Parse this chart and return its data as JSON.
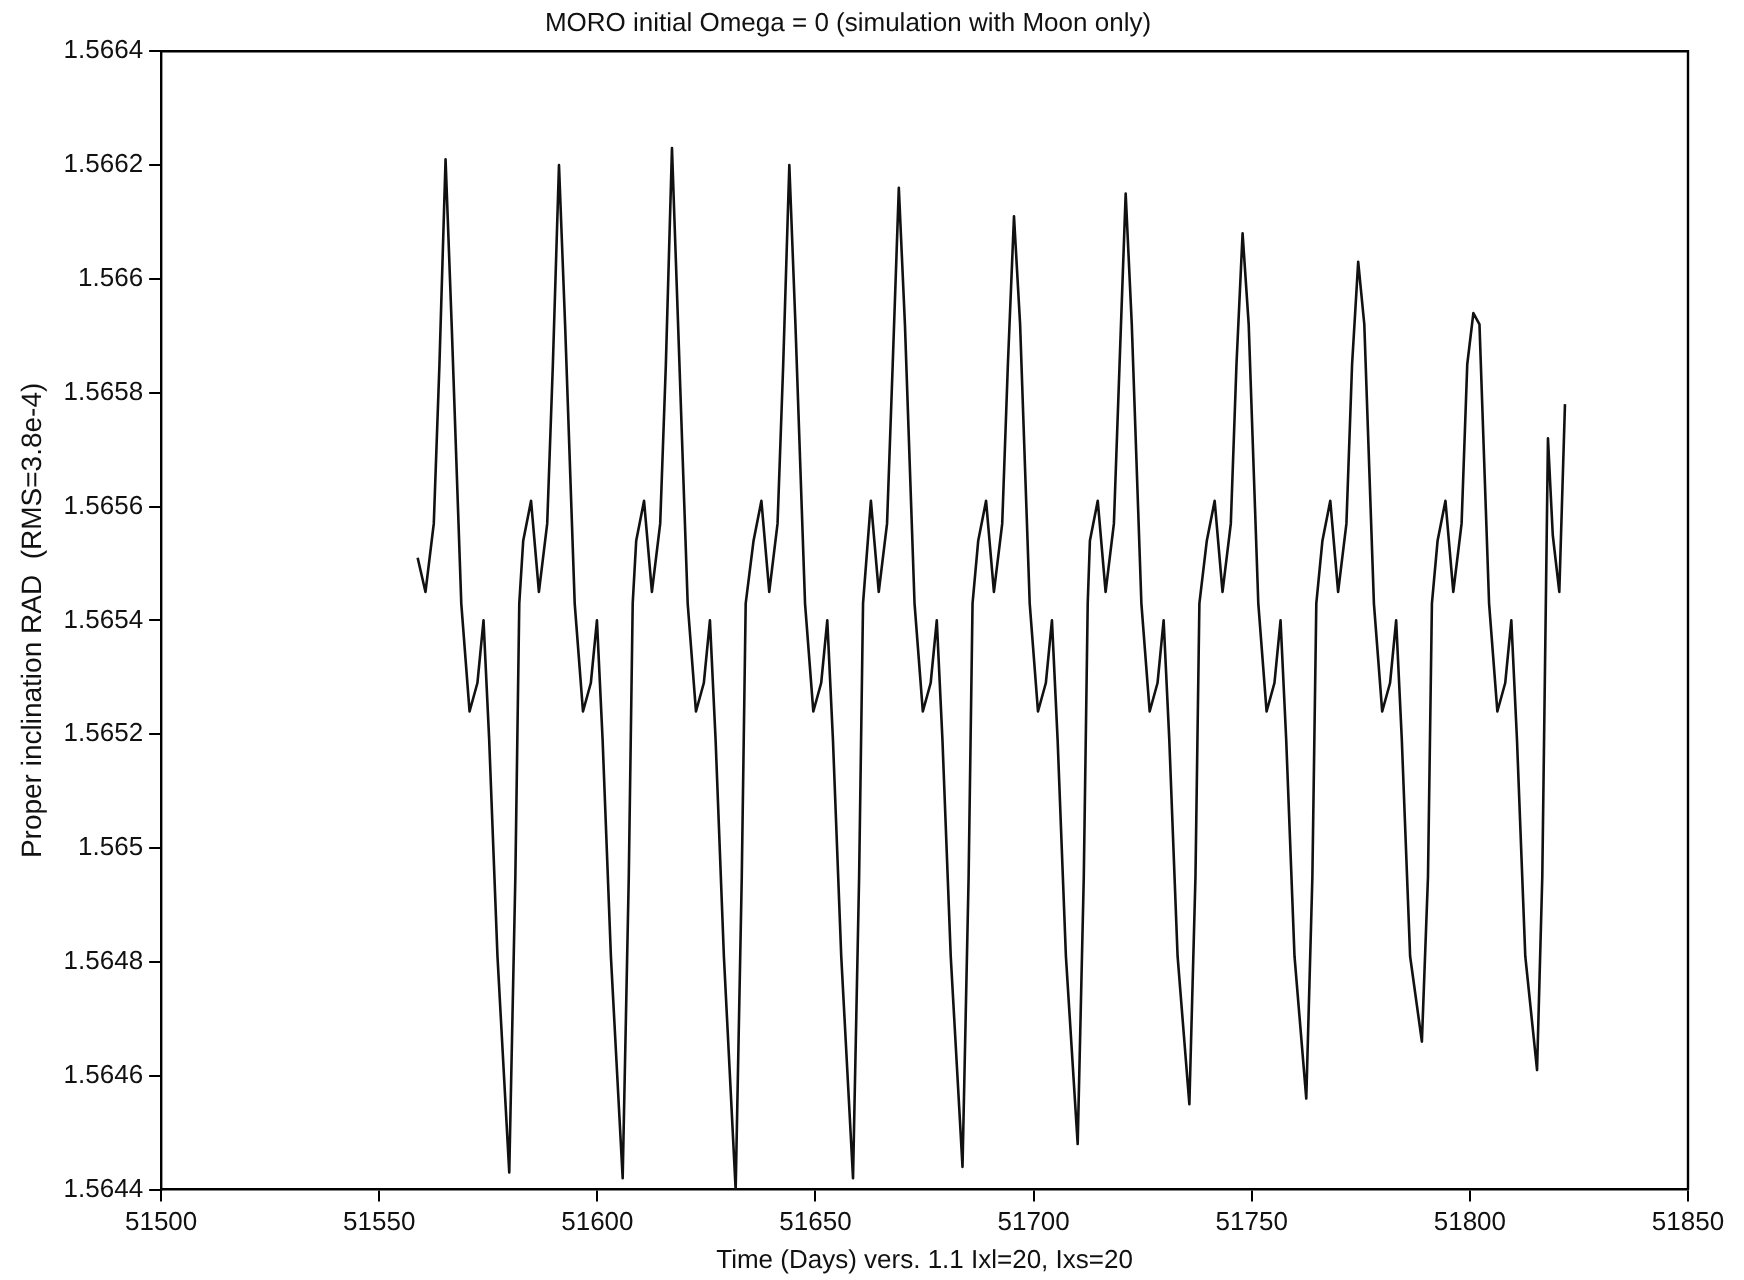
{
  "chart_data": {
    "type": "line",
    "title": "MORO initial Omega = 0 (simulation with Moon only)",
    "xlabel": "Time (Days) vers. 1.1 Ixl=20, Ixs=20",
    "ylabel": "Proper inclination RAD  (RMS=3.8e-4)",
    "xlim": [
      51500,
      51850
    ],
    "xticks": [
      51500,
      51550,
      51600,
      51650,
      51700,
      51750,
      51800,
      51850
    ],
    "ylim": [
      1.5644,
      1.5664
    ],
    "yticks": [
      1.5644,
      1.5646,
      1.5648,
      1.565,
      1.5652,
      1.5654,
      1.5656,
      1.5658,
      1.566,
      1.5662,
      1.5664
    ],
    "grid": false,
    "legend": false,
    "marker": "none",
    "line_style": "solid",
    "series": [
      {
        "color": "#111111",
        "x": [
          51558.8,
          51560.6,
          51562.5,
          51563.8,
          51565.2,
          51566.6,
          51568.8,
          51570.7,
          51572.5,
          51573.9,
          51575.2,
          51577.1,
          51579.8,
          51581.2,
          51582.1,
          51583.0,
          51584.8,
          51586.6,
          51588.5,
          51589.8,
          51591.2,
          51592.6,
          51594.8,
          51596.7,
          51598.5,
          51599.9,
          51601.2,
          51603.1,
          51605.8,
          51607.2,
          51608.1,
          51608.9,
          51610.7,
          51612.5,
          51614.4,
          51615.7,
          51617.1,
          51618.5,
          51620.7,
          51622.6,
          51624.4,
          51625.8,
          51627.1,
          51629.0,
          51631.7,
          51633.1,
          51634.0,
          51635.8,
          51637.6,
          51639.4,
          51641.3,
          51642.6,
          51644.0,
          51645.4,
          51647.6,
          51649.5,
          51651.3,
          51652.7,
          51654.0,
          51655.9,
          51658.6,
          51660.0,
          51660.9,
          51662.7,
          51664.5,
          51666.4,
          51667.7,
          51669.1,
          51670.5,
          51672.7,
          51674.6,
          51676.4,
          51677.8,
          51679.1,
          51681.0,
          51683.7,
          51685.1,
          51686.0,
          51687.3,
          51689.1,
          51690.9,
          51692.8,
          51694.1,
          51695.5,
          51696.9,
          51699.1,
          51701.0,
          51702.8,
          51704.2,
          51705.5,
          51707.4,
          51710.1,
          51711.5,
          51712.4,
          51712.9,
          51714.7,
          51716.5,
          51718.4,
          51719.7,
          51721.1,
          51722.5,
          51724.7,
          51726.6,
          51728.4,
          51729.8,
          51731.1,
          51733.0,
          51735.7,
          51737.1,
          51738.0,
          51739.7,
          51741.5,
          51743.3,
          51745.2,
          51746.5,
          51747.9,
          51749.3,
          51751.5,
          51753.4,
          51755.2,
          51756.6,
          51757.9,
          51759.8,
          51762.5,
          51763.9,
          51764.8,
          51766.2,
          51768.0,
          51769.8,
          51771.7,
          51773.0,
          51774.4,
          51775.8,
          51778.0,
          51779.9,
          51781.7,
          51783.1,
          51784.4,
          51786.3,
          51789.0,
          51790.4,
          51791.3,
          51792.6,
          51794.4,
          51796.2,
          51798.1,
          51799.4,
          51800.8,
          51802.2,
          51804.4,
          51806.3,
          51808.1,
          51809.5,
          51810.8,
          51812.7,
          51815.4,
          51816.6,
          51817.9,
          51819.0,
          51820.5,
          51821.8
        ],
        "values": [
          1.56551,
          1.56545,
          1.56557,
          1.56585,
          1.56621,
          1.56592,
          1.56543,
          1.56524,
          1.56529,
          1.5654,
          1.56519,
          1.56481,
          1.56443,
          1.56495,
          1.56543,
          1.56554,
          1.56561,
          1.56545,
          1.56557,
          1.56585,
          1.5662,
          1.56592,
          1.56543,
          1.56524,
          1.56529,
          1.5654,
          1.56519,
          1.56481,
          1.56442,
          1.56495,
          1.56543,
          1.56554,
          1.56561,
          1.56545,
          1.56557,
          1.56585,
          1.56623,
          1.56592,
          1.56543,
          1.56524,
          1.56529,
          1.5654,
          1.56519,
          1.56481,
          1.5644,
          1.56495,
          1.56543,
          1.56554,
          1.56561,
          1.56545,
          1.56557,
          1.56585,
          1.5662,
          1.56592,
          1.56543,
          1.56524,
          1.56529,
          1.5654,
          1.56519,
          1.56481,
          1.56442,
          1.56495,
          1.56543,
          1.56561,
          1.56545,
          1.56557,
          1.56585,
          1.56616,
          1.56592,
          1.56543,
          1.56524,
          1.56529,
          1.5654,
          1.56519,
          1.56481,
          1.56444,
          1.56495,
          1.56543,
          1.56554,
          1.56561,
          1.56545,
          1.56557,
          1.56585,
          1.56611,
          1.56592,
          1.56543,
          1.56524,
          1.56529,
          1.5654,
          1.56519,
          1.56481,
          1.56448,
          1.56495,
          1.56543,
          1.56554,
          1.56561,
          1.56545,
          1.56557,
          1.56585,
          1.56615,
          1.56592,
          1.56543,
          1.56524,
          1.56529,
          1.5654,
          1.56519,
          1.56481,
          1.56455,
          1.56495,
          1.56543,
          1.56554,
          1.56561,
          1.56545,
          1.56557,
          1.56585,
          1.56608,
          1.56592,
          1.56543,
          1.56524,
          1.56529,
          1.5654,
          1.56519,
          1.56481,
          1.56456,
          1.56495,
          1.56543,
          1.56554,
          1.56561,
          1.56545,
          1.56557,
          1.56585,
          1.56603,
          1.56592,
          1.56543,
          1.56524,
          1.56529,
          1.5654,
          1.56519,
          1.56481,
          1.56466,
          1.56495,
          1.56543,
          1.56554,
          1.56561,
          1.56545,
          1.56557,
          1.56585,
          1.56594,
          1.56592,
          1.56543,
          1.56524,
          1.56529,
          1.5654,
          1.56519,
          1.56481,
          1.56461,
          1.56495,
          1.56572,
          1.56555,
          1.56545,
          1.56578
        ]
      }
    ]
  }
}
